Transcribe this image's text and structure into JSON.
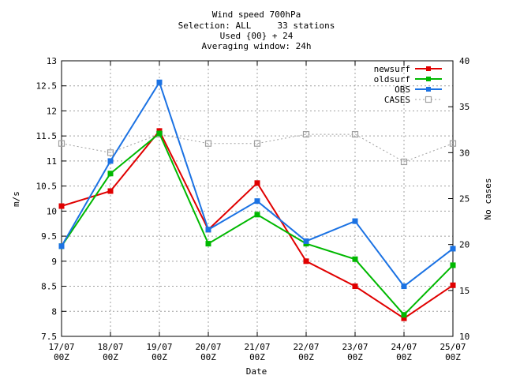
{
  "chart_data": {
    "type": "line",
    "title_lines": [
      "Wind speed 700hPa",
      "Selection: ALL     33 stations",
      "Used {00} + 24",
      "Averaging window: 24h"
    ],
    "xlabel": "Date",
    "ylabel": "m/s",
    "y2label": "No cases",
    "categories": [
      [
        "17/07",
        "00Z"
      ],
      [
        "18/07",
        "00Z"
      ],
      [
        "19/07",
        "00Z"
      ],
      [
        "20/07",
        "00Z"
      ],
      [
        "21/07",
        "00Z"
      ],
      [
        "22/07",
        "00Z"
      ],
      [
        "23/07",
        "00Z"
      ],
      [
        "24/07",
        "00Z"
      ],
      [
        "25/07",
        "00Z"
      ]
    ],
    "ylim": [
      7.5,
      13
    ],
    "yticks": [
      "7.5",
      "8",
      "8.5",
      "9",
      "9.5",
      "10",
      "10.5",
      "11",
      "11.5",
      "12",
      "12.5",
      "13"
    ],
    "y2lim": [
      10,
      40
    ],
    "y2ticks": [
      "10",
      "15",
      "20",
      "25",
      "30",
      "35",
      "40"
    ],
    "grid": true,
    "legend_position": "top-right",
    "series": [
      {
        "name": "newsurf",
        "axis": "y",
        "color": "#e00000",
        "marker": "filled-square",
        "values": [
          10.1,
          10.4,
          11.6,
          9.63,
          10.56,
          9.0,
          8.5,
          7.86,
          8.52
        ]
      },
      {
        "name": "oldsurf",
        "axis": "y",
        "color": "#00b800",
        "marker": "filled-square",
        "values": [
          9.3,
          10.75,
          11.55,
          9.35,
          9.93,
          9.35,
          9.04,
          7.93,
          8.92
        ]
      },
      {
        "name": "OBS",
        "axis": "y",
        "color": "#1b72e3",
        "marker": "filled-square",
        "values": [
          9.3,
          11.0,
          12.57,
          9.63,
          10.2,
          9.4,
          9.8,
          8.5,
          9.25
        ]
      },
      {
        "name": "CASES",
        "axis": "y2",
        "color": "#a0a0a0",
        "marker": "open-square",
        "dashed": true,
        "values": [
          31,
          30,
          32,
          31,
          31,
          32,
          32,
          29,
          31
        ]
      }
    ]
  }
}
